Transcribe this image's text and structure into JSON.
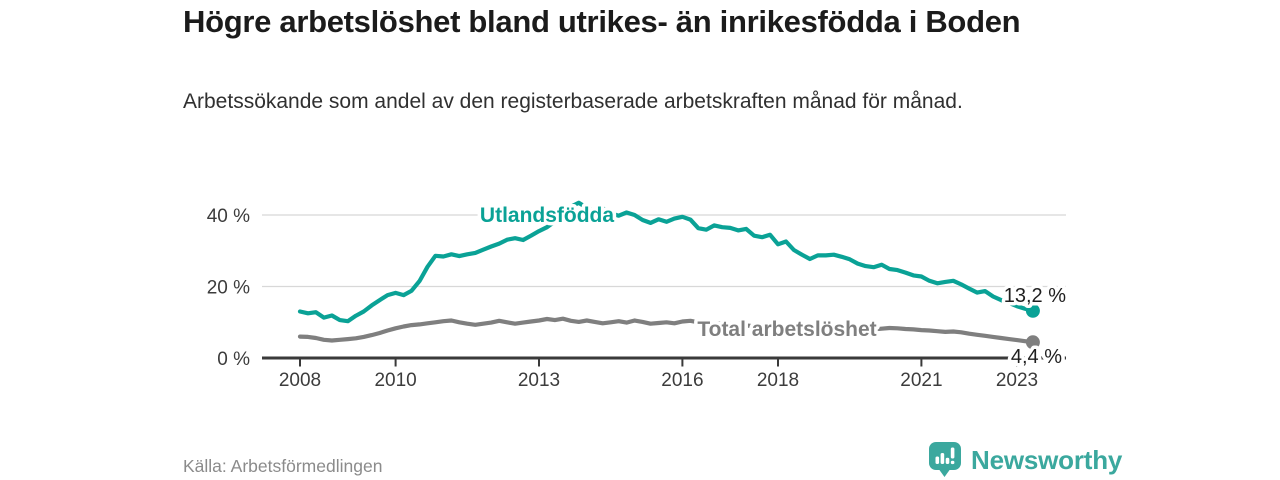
{
  "header": {
    "title": "Högre arbetslöshet bland utrikes- än inrikesfödda i Boden",
    "subtitle": "Arbetssökande som andel av den registerbaserade arbetskraften månad för månad."
  },
  "footer": {
    "source": "Källa: Arbetsförmedlingen",
    "brand": "Newsworthy"
  },
  "colors": {
    "foreign_born_line": "#0aa296",
    "total_line": "#7f7f7f",
    "brand_teal": "#3ba89e",
    "axis_text": "#3c3c3c",
    "gridline": "#d8d8d8"
  },
  "chart_data": {
    "type": "line",
    "unit": "%",
    "grid": true,
    "ylim": [
      0,
      45
    ],
    "x_start_year": 2008,
    "x_step_months": 2,
    "x_ticks": [
      {
        "label": "2008",
        "year": 2008
      },
      {
        "label": "2010",
        "year": 2010
      },
      {
        "label": "2013",
        "year": 2013
      },
      {
        "label": "2016",
        "year": 2016
      },
      {
        "label": "2018",
        "year": 2018
      },
      {
        "label": "2021",
        "year": 2021
      },
      {
        "label": "2023",
        "year": 2023
      }
    ],
    "y_ticks": [
      {
        "label": "40 %",
        "value": 40
      },
      {
        "label": "20 %",
        "value": 20
      },
      {
        "label": "0 %",
        "value": 0
      }
    ],
    "series": [
      {
        "name": "Utlandsfödda",
        "color": "#0aa296",
        "end_label": "13,2 %",
        "end_value": 13.2,
        "values": [
          13.0,
          12.5,
          12.8,
          11.3,
          11.9,
          10.6,
          10.3,
          11.8,
          13.0,
          14.7,
          16.2,
          17.6,
          18.2,
          17.6,
          18.8,
          21.5,
          25.5,
          28.6,
          28.4,
          29.0,
          28.5,
          29.0,
          29.4,
          30.3,
          31.2,
          32.0,
          33.1,
          33.5,
          33.0,
          34.2,
          35.5,
          36.6,
          38.2,
          40.2,
          42.3,
          43.4,
          42.0,
          41.2,
          41.9,
          40.5,
          39.8,
          40.7,
          40.0,
          38.6,
          37.8,
          38.8,
          38.1,
          39.0,
          39.5,
          38.7,
          36.3,
          35.9,
          37.1,
          36.6,
          36.4,
          35.7,
          36.1,
          34.2,
          33.8,
          34.5,
          31.8,
          32.6,
          30.2,
          28.9,
          27.7,
          28.7,
          28.7,
          28.9,
          28.3,
          27.6,
          26.4,
          25.7,
          25.4,
          26.1,
          24.9,
          24.6,
          23.9,
          23.1,
          22.8,
          21.6,
          20.9,
          21.3,
          21.6,
          20.6,
          19.4,
          18.3,
          18.7,
          17.2,
          16.2,
          15.4,
          14.5,
          13.8,
          13.2
        ]
      },
      {
        "name": "Total arbetslöshet",
        "color": "#7f7f7f",
        "end_label": "4,4 %",
        "end_value": 4.4,
        "values": [
          6.0,
          5.9,
          5.6,
          5.1,
          4.9,
          5.1,
          5.3,
          5.5,
          5.9,
          6.4,
          7.0,
          7.7,
          8.3,
          8.8,
          9.2,
          9.4,
          9.7,
          10.0,
          10.3,
          10.5,
          10.0,
          9.6,
          9.3,
          9.6,
          9.9,
          10.4,
          10.0,
          9.6,
          9.9,
          10.2,
          10.5,
          10.9,
          10.6,
          11.0,
          10.4,
          10.1,
          10.5,
          10.1,
          9.7,
          10.0,
          10.3,
          9.9,
          10.5,
          10.1,
          9.6,
          9.8,
          10.0,
          9.7,
          10.2,
          10.4,
          10.0,
          9.8,
          9.6,
          9.7,
          9.5,
          9.3,
          9.1,
          8.9,
          9.0,
          8.8,
          8.7,
          8.5,
          8.4,
          8.3,
          8.4,
          8.2,
          8.1,
          8.0,
          7.9,
          8.0,
          7.9,
          8.0,
          8.0,
          8.2,
          8.4,
          8.3,
          8.1,
          8.0,
          7.8,
          7.7,
          7.5,
          7.3,
          7.4,
          7.2,
          6.8,
          6.5,
          6.2,
          5.9,
          5.6,
          5.3,
          5.0,
          4.7,
          4.4
        ]
      }
    ]
  }
}
